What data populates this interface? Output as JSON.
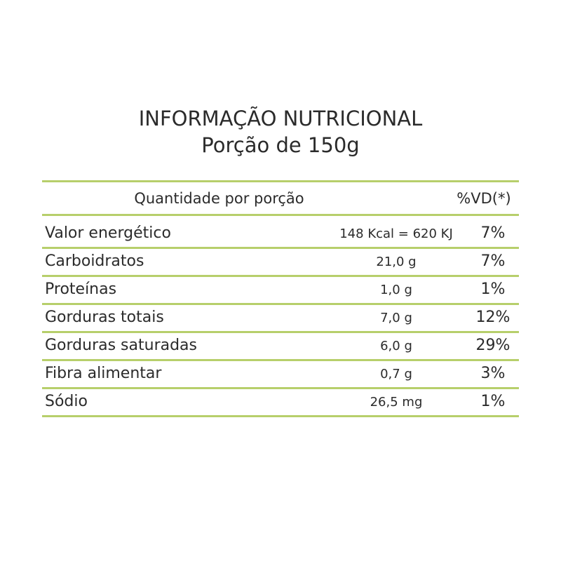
{
  "title": {
    "line1": "INFORMAÇÃO NUTRICIONAL",
    "line2": "Porção de 150g"
  },
  "header": {
    "quantity_label": "Quantidade por porção",
    "vd_label": "%VD(*)"
  },
  "rows": [
    {
      "name": "Valor energético",
      "amount": "148 Kcal = 620 KJ",
      "vd": "7%"
    },
    {
      "name": "Carboidratos",
      "amount": "21,0 g",
      "vd": "7%"
    },
    {
      "name": "Proteínas",
      "amount": "1,0 g",
      "vd": "1%"
    },
    {
      "name": "Gorduras totais",
      "amount": "7,0 g",
      "vd": "12%"
    },
    {
      "name": "Gorduras saturadas",
      "amount": "6,0 g",
      "vd": "29%"
    },
    {
      "name": "Fibra alimentar",
      "amount": "0,7 g",
      "vd": "3%"
    },
    {
      "name": "Sódio",
      "amount": "26,5 mg",
      "vd": "1%"
    }
  ],
  "colors": {
    "rule": "#b7cf6b",
    "text": "#2b2b2b",
    "background": "#ffffff"
  }
}
